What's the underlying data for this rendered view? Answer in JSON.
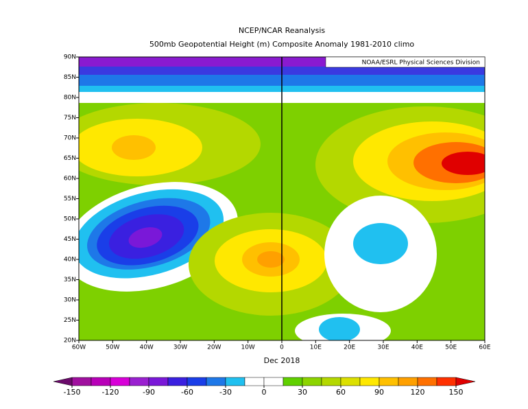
{
  "chart_data": {
    "type": "contour-map",
    "title": "NCEP/NCAR Reanalysis",
    "subtitle": "500mb Geopotential Height (m) Composite Anomaly 1981-2010 climo",
    "credit": "NOAA/ESRL Physical Sciences Division",
    "xlabel": "Dec 2018",
    "xlim": [
      -60,
      60
    ],
    "ylim": [
      20,
      90
    ],
    "xticks": [
      {
        "value": -60,
        "label": "60W"
      },
      {
        "value": -50,
        "label": "50W"
      },
      {
        "value": -40,
        "label": "40W"
      },
      {
        "value": -30,
        "label": "30W"
      },
      {
        "value": -20,
        "label": "20W"
      },
      {
        "value": -10,
        "label": "10W"
      },
      {
        "value": 0,
        "label": "0"
      },
      {
        "value": 10,
        "label": "10E"
      },
      {
        "value": 20,
        "label": "20E"
      },
      {
        "value": 30,
        "label": "30E"
      },
      {
        "value": 40,
        "label": "40E"
      },
      {
        "value": 50,
        "label": "50E"
      },
      {
        "value": 60,
        "label": "60E"
      }
    ],
    "yticks": [
      {
        "value": 20,
        "label": "20N"
      },
      {
        "value": 25,
        "label": "25N"
      },
      {
        "value": 30,
        "label": "30N"
      },
      {
        "value": 35,
        "label": "35N"
      },
      {
        "value": 40,
        "label": "40N"
      },
      {
        "value": 45,
        "label": "45N"
      },
      {
        "value": 50,
        "label": "50N"
      },
      {
        "value": 55,
        "label": "55N"
      },
      {
        "value": 60,
        "label": "60N"
      },
      {
        "value": 65,
        "label": "65N"
      },
      {
        "value": 70,
        "label": "70N"
      },
      {
        "value": 75,
        "label": "75N"
      },
      {
        "value": 80,
        "label": "80N"
      },
      {
        "value": 85,
        "label": "85N"
      },
      {
        "value": 90,
        "label": "90N"
      }
    ],
    "colorbar": {
      "levels": [
        -150,
        -135,
        -120,
        -105,
        -90,
        -75,
        -60,
        -45,
        -30,
        -15,
        0,
        15,
        30,
        45,
        60,
        75,
        90,
        105,
        120,
        135,
        150
      ],
      "colors": [
        "#a0109f",
        "#b800b8",
        "#d800d8",
        "#9a20d0",
        "#7a18d8",
        "#3a20e0",
        "#1a3ee8",
        "#1e78e8",
        "#20c0f0",
        "#ffffff",
        "#ffffff",
        "#60d000",
        "#8cd400",
        "#b4d800",
        "#dce000",
        "#ffe800",
        "#ffc000",
        "#ffa000",
        "#ff7000",
        "#ff3000"
      ],
      "under_color": "#6a0a6a",
      "over_color": "#e00000",
      "ticks": [
        -150,
        -120,
        -90,
        -60,
        -30,
        0,
        30,
        60,
        90,
        120,
        150
      ]
    }
  }
}
